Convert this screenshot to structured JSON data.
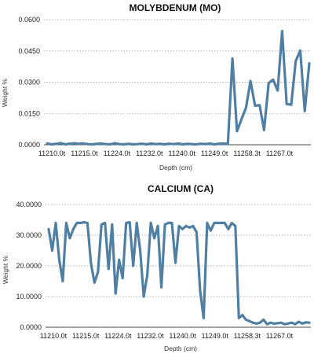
{
  "chart_data": [
    {
      "type": "line",
      "title": "MOLYBDENUM (MO)",
      "xlabel": "Depth (cm)",
      "ylabel": "Weight %",
      "ylim": [
        0,
        0.06
      ],
      "yticks": [
        "0.0000",
        "0.0150",
        "0.0300",
        "0.0450",
        "0.0600"
      ],
      "xticks": [
        "11210.0t",
        "11215.0t",
        "11224.0t",
        "11232.0t",
        "11240.0t",
        "11249.0t",
        "11258.3t",
        "11267.0t"
      ],
      "grid": true,
      "color": "#4f7fa3",
      "series": [
        {
          "values": [
            0.0006,
            0.0002,
            0.0004,
            0.0008,
            0.0002,
            0.0005,
            0.0007,
            0.0004,
            0.0006,
            0.0003,
            0.0002,
            0.0004,
            0.0006,
            0.0003,
            0.0002,
            0.0007,
            0.0003,
            0.0002,
            0.0004,
            0.0002,
            0.0003,
            0.0005,
            0.0002,
            0.0006,
            0.0003,
            0.0004,
            0.0002,
            0.0005,
            0.0003,
            0.0006,
            0.0002,
            0.0004,
            0.0003,
            0.0002,
            0.0005,
            0.0003,
            0.0006,
            0.0002,
            0.0005,
            0.0006,
            0.0004,
            0.0414,
            0.0065,
            0.0122,
            0.0178,
            0.0306,
            0.0187,
            0.019,
            0.007,
            0.0295,
            0.0312,
            0.026,
            0.0545,
            0.0195,
            0.0192,
            0.0401,
            0.0452,
            0.0162,
            0.039
          ]
        }
      ]
    },
    {
      "type": "line",
      "title": "CALCIUM (CA)",
      "xlabel": "Depth (cm)",
      "ylabel": "Weight %",
      "ylim": [
        0,
        40
      ],
      "yticks": [
        "0.0000",
        "10.0000",
        "20.0000",
        "30.0000",
        "40.0000"
      ],
      "xticks": [
        "11210.0t",
        "11215.0t",
        "11224.0t",
        "11232.0t",
        "11240.0t",
        "11249.0t",
        "11258.3t",
        "11267.0t"
      ],
      "grid": true,
      "color": "#4f7fa3",
      "series": [
        {
          "values": [
            32.0,
            25.0,
            34.0,
            22.0,
            15.0,
            34.0,
            29.0,
            32.0,
            34.0,
            34.0,
            34.2,
            34.0,
            21.0,
            14.5,
            18.0,
            33.5,
            34.0,
            19.0,
            33.5,
            11.0,
            22.0,
            16.0,
            34.0,
            34.2,
            20.0,
            34.0,
            25.0,
            10.0,
            17.0,
            34.0,
            29.0,
            33.0,
            13.0,
            33.5,
            34.0,
            34.0,
            21.0,
            33.0,
            32.0,
            33.0,
            32.5,
            33.0,
            31.0,
            12.0,
            3.0,
            34.0,
            31.5,
            34.0,
            34.0,
            34.0,
            34.0,
            32.0,
            34.0,
            33.0,
            3.0,
            4.0,
            2.5,
            2.0,
            1.5,
            1.2,
            1.5,
            2.5,
            1.0,
            1.5,
            1.2,
            1.3,
            1.5,
            1.0,
            1.2,
            1.5,
            1.0,
            1.8,
            1.2,
            1.6,
            1.5
          ]
        }
      ]
    }
  ]
}
